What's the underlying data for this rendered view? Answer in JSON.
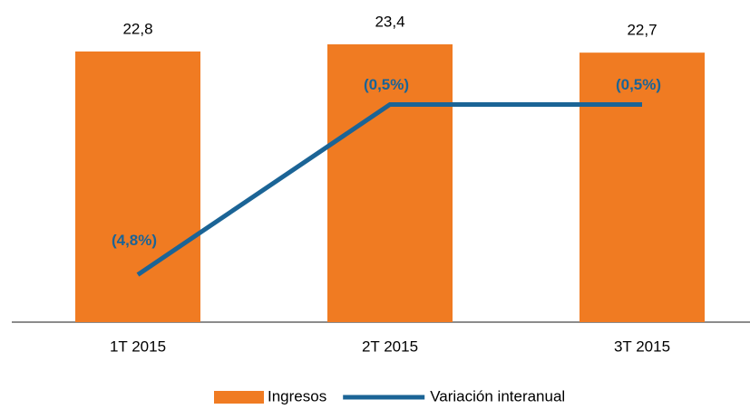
{
  "chart_data": {
    "type": "bar",
    "categories": [
      "1T 2015",
      "2T 2015",
      "3T 2015"
    ],
    "series": [
      {
        "name": "Ingresos",
        "type": "bar",
        "color": "#f07b22",
        "values": [
          22.8,
          23.4,
          22.7
        ],
        "value_labels": [
          "22,8",
          "23,4",
          "22,7"
        ]
      },
      {
        "name": "Variación interanual",
        "type": "line",
        "axis": "y2",
        "color": "#1b6496",
        "values": [
          -4.8,
          -0.5,
          -0.5
        ],
        "value_labels": [
          "(4,8%)",
          "(0,5%)",
          "(0,5%)"
        ]
      }
    ],
    "ylim": [
      0,
      25
    ],
    "y2lim": [
      -6,
      1.5
    ],
    "legend": "bottom"
  }
}
